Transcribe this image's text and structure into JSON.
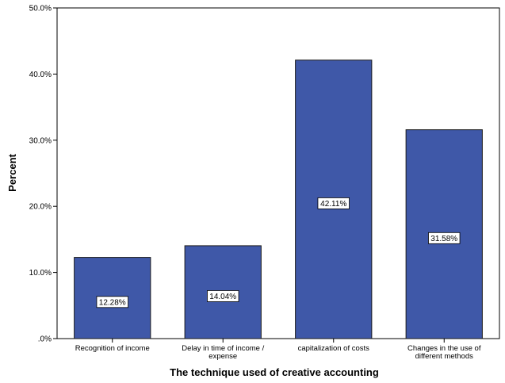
{
  "chart_data": {
    "type": "bar",
    "title": "",
    "xlabel": "The technique used of creative accounting",
    "ylabel": "Percent",
    "ylim": [
      0,
      50
    ],
    "y_ticks": [
      ".0%",
      "10.0%",
      "20.0%",
      "30.0%",
      "40.0%",
      "50.0%"
    ],
    "categories": [
      [
        "Recognition of income"
      ],
      [
        "Delay in time of income /",
        "expense"
      ],
      [
        "capitalization of costs"
      ],
      [
        "Changes in the use of",
        "different methods"
      ]
    ],
    "values": [
      12.28,
      14.04,
      42.11,
      31.58
    ],
    "value_labels": [
      "12.28%",
      "14.04%",
      "42.11%",
      "31.58%"
    ],
    "grid": false,
    "legend": "none",
    "colors": {
      "bar": "#3F58A8",
      "bar_stroke": "#1a1a1a",
      "plot_bg": "#ffffff",
      "axis": "#000000"
    }
  }
}
